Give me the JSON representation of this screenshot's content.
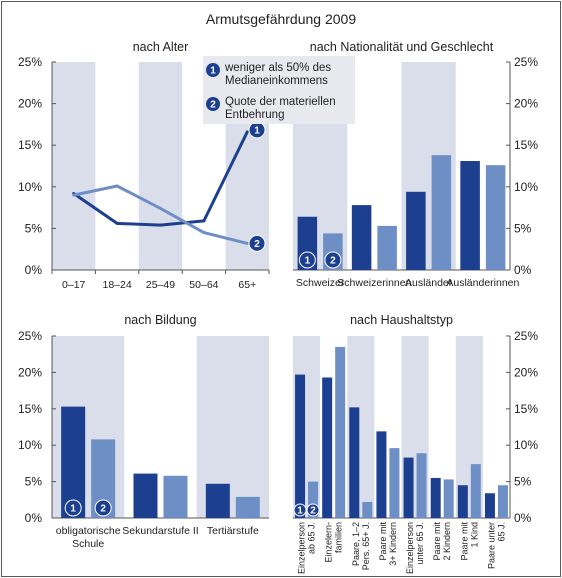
{
  "title": "Armutsgefährdung 2009",
  "colors": {
    "dark": "#1c3f8f",
    "light": "#6e8fc6",
    "band": "#d9deea",
    "axis": "#555555"
  },
  "legend": [
    {
      "num": "1",
      "label_lines": [
        "weniger als 50% des",
        "Medianeinkommens"
      ]
    },
    {
      "num": "2",
      "label_lines": [
        "Quote der materiellen",
        "Entbehrung"
      ]
    }
  ],
  "chart_data": [
    {
      "type": "line",
      "title": "nach Alter",
      "categories": [
        "0–17",
        "18–24",
        "25–49",
        "50–64",
        "65+"
      ],
      "series": [
        {
          "name": "weniger als 50% des Medianeinkommens",
          "values": [
            9.2,
            5.6,
            5.4,
            5.9,
            16.6
          ]
        },
        {
          "name": "Quote der materiellen Entbehrung",
          "values": [
            9.0,
            10.1,
            7.4,
            4.5,
            3.2
          ]
        }
      ],
      "ylim": [
        0,
        25
      ],
      "yticks": [
        "0%",
        "5%",
        "10%",
        "15%",
        "20%",
        "25%"
      ],
      "axis_side": "left",
      "series_markers": [
        "1",
        "2"
      ]
    },
    {
      "type": "bar",
      "title": "nach Nationalität und Geschlecht",
      "categories": [
        "Schweizer",
        "Schweizerinnen",
        "Ausländer",
        "Ausländerinnen"
      ],
      "series": [
        {
          "name": "weniger als 50% des Medianeinkommens",
          "values": [
            6.4,
            7.8,
            9.4,
            13.1
          ]
        },
        {
          "name": "Quote der materiellen Entbehrung",
          "values": [
            4.4,
            5.3,
            13.8,
            12.6
          ]
        }
      ],
      "ylim": [
        0,
        25
      ],
      "yticks": [
        "0%",
        "5%",
        "10%",
        "15%",
        "20%",
        "25%"
      ],
      "axis_side": "right",
      "bar_markers": [
        "1",
        "2"
      ]
    },
    {
      "type": "bar",
      "title": "nach Bildung",
      "categories": [
        "obligatorische Schule",
        "Sekundarstufe II",
        "Tertiärstufe"
      ],
      "category_lines": [
        [
          "obligatorische",
          "Schule"
        ],
        [
          "Sekundarstufe II"
        ],
        [
          "Tertiärstufe"
        ]
      ],
      "series": [
        {
          "name": "weniger als 50% des Medianeinkommens",
          "values": [
            15.3,
            6.1,
            4.7
          ]
        },
        {
          "name": "Quote der materiellen Entbehrung",
          "values": [
            10.8,
            5.8,
            2.9
          ]
        }
      ],
      "ylim": [
        0,
        25
      ],
      "yticks": [
        "0%",
        "5%",
        "10%",
        "15%",
        "20%",
        "25%"
      ],
      "axis_side": "left",
      "bar_markers": [
        "1",
        "2"
      ]
    },
    {
      "type": "bar",
      "title": "nach Haushaltstyp",
      "categories": [
        "Einzelperson ab 65 J.",
        "Einzelern-familien",
        "Paare, 1–2 Pers. 65+ J.",
        "Paare mit 3+ Kindern",
        "Einzelperson unter 65 J.",
        "Paare mit 2 Kindern",
        "Paare mit 1 Kind",
        "Paare unter 65 J."
      ],
      "category_lines": [
        [
          "Einzelperson",
          "ab 65 J."
        ],
        [
          "Einzelern-",
          "familien"
        ],
        [
          "Paare, 1–2",
          "Pers. 65+ J."
        ],
        [
          "Paare mit",
          "3+ Kindern"
        ],
        [
          "Einzelperson",
          "unter 65 J."
        ],
        [
          "Paare mit",
          "2 Kindern"
        ],
        [
          "Paare mit",
          "1 Kind"
        ],
        [
          "Paare unter",
          "65 J."
        ]
      ],
      "series": [
        {
          "name": "weniger als 50% des Medianeinkommens",
          "values": [
            19.7,
            19.3,
            15.2,
            11.9,
            8.3,
            5.5,
            4.5,
            3.4
          ]
        },
        {
          "name": "Quote der materiellen Entbehrung",
          "values": [
            5.0,
            23.5,
            2.2,
            9.6,
            8.9,
            5.3,
            7.4,
            4.5
          ]
        }
      ],
      "ylim": [
        0,
        25
      ],
      "yticks": [
        "0%",
        "5%",
        "10%",
        "15%",
        "20%",
        "25%"
      ],
      "axis_side": "right",
      "bar_markers": [
        "1",
        "2"
      ]
    }
  ]
}
